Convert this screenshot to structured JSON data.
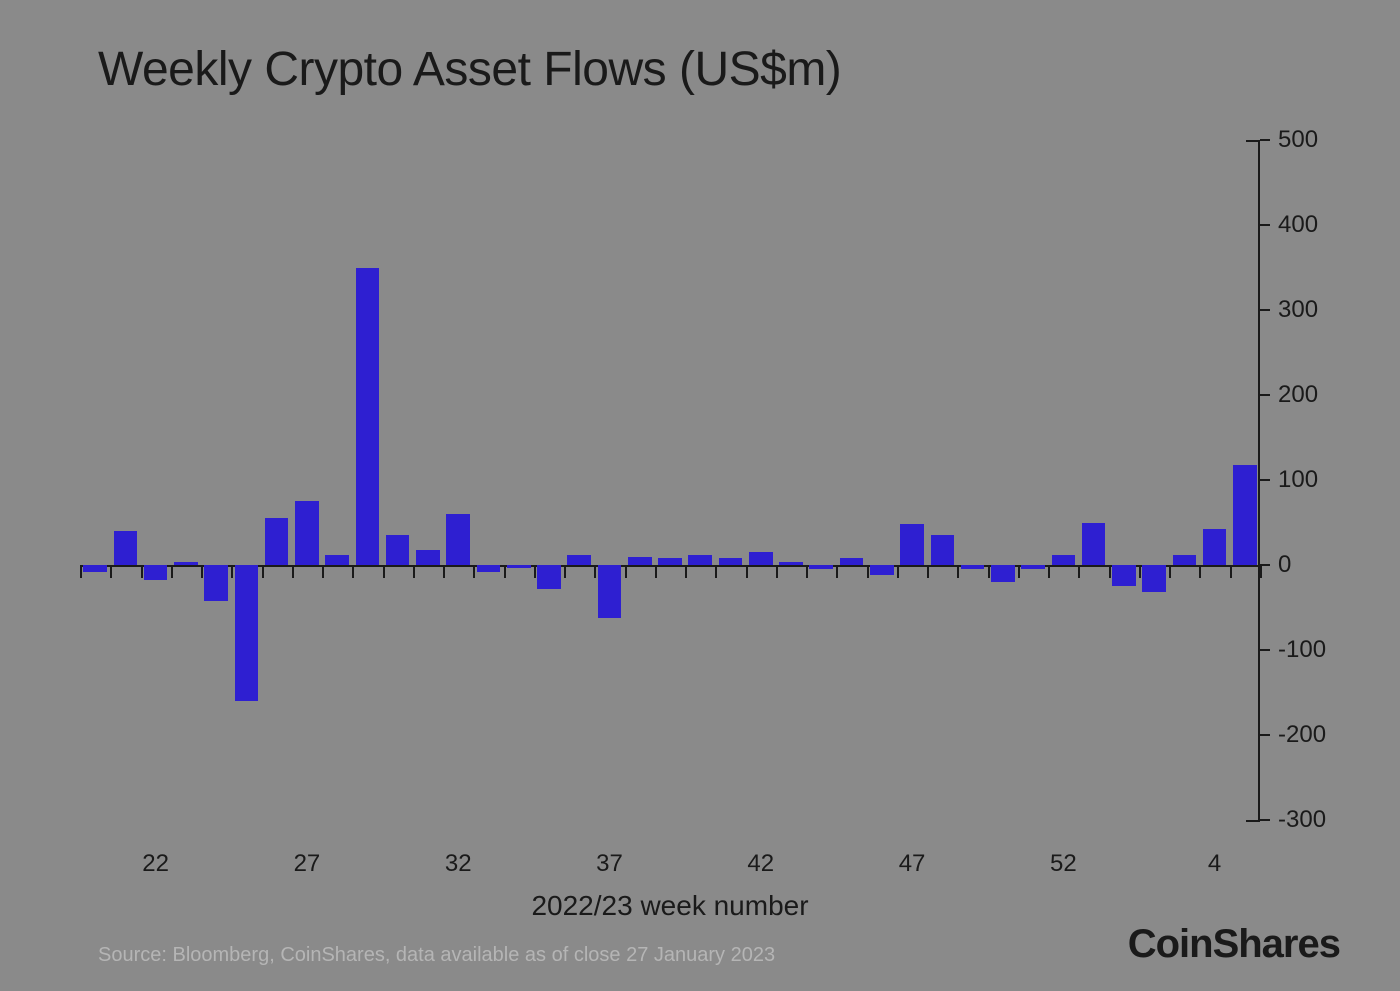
{
  "chart": {
    "type": "bar",
    "title": "Weekly Crypto Asset Flows (US$m)",
    "title_fontsize": 48,
    "title_color": "#1a1a1a",
    "background_color": "#8a8a8a",
    "bar_color": "#2e1fd1",
    "axis_color": "#1a1a1a",
    "tick_fontsize": 24,
    "axis_title_fontsize": 28,
    "y_axis": {
      "position": "right",
      "min": -300,
      "max": 500,
      "tick_step": 100,
      "ticks": [
        500,
        400,
        300,
        200,
        100,
        0,
        -100,
        -200,
        -300
      ]
    },
    "x_axis": {
      "title": "2022/23 week number",
      "tick_labels": [
        "22",
        "27",
        "32",
        "37",
        "42",
        "47",
        "52",
        "4"
      ],
      "tick_label_indices": [
        2,
        7,
        12,
        17,
        22,
        27,
        32,
        37
      ]
    },
    "bar_width_ratio": 0.78,
    "values": [
      -8,
      40,
      -18,
      3,
      -42,
      -160,
      55,
      75,
      12,
      350,
      35,
      18,
      60,
      -8,
      -4,
      -28,
      12,
      -62,
      9,
      8,
      12,
      8,
      15,
      3,
      -5,
      8,
      -12,
      48,
      35,
      -5,
      -20,
      -5,
      12,
      50,
      -25,
      -32,
      12,
      42,
      118
    ]
  },
  "source_note": "Source: Bloomberg, CoinShares, data available as of close 27 January 2023",
  "source_color": "#b5b5b5",
  "source_fontsize": 20,
  "brand": "CoinShares",
  "brand_fontsize": 40,
  "brand_color": "#1a1a1a"
}
